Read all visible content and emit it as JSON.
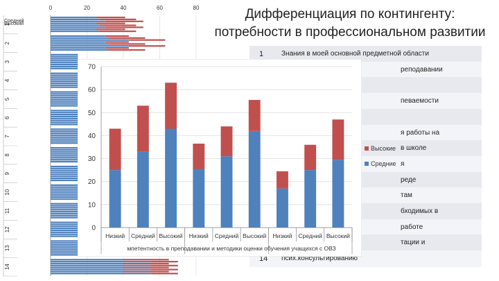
{
  "title_line1": "Дифференциация по контингенту:",
  "title_line2": "потребности в профессиональном развитии",
  "colors": {
    "Средние": "#4f81bd",
    "Высокие": "#c0504d"
  },
  "list": [
    {
      "num": "1",
      "text": "Знания в моей основной предметной области"
    },
    {
      "num": "",
      "text": "реподавании"
    },
    {
      "num": "",
      "text": ""
    },
    {
      "num": "",
      "text": "певаемости"
    },
    {
      "num": "",
      "text": ""
    },
    {
      "num": "",
      "text": "я работы на"
    },
    {
      "num": "",
      "text": "в школе"
    },
    {
      "num": "",
      "text": "я"
    },
    {
      "num": "",
      "text": "реде"
    },
    {
      "num": "",
      "text": "там"
    },
    {
      "num": "",
      "text": "бходимых в"
    },
    {
      "num": "",
      "text": "работе"
    },
    {
      "num": "",
      "text": "тации и"
    },
    {
      "num": "14",
      "text": "псих.консультированию"
    }
  ],
  "chart_data": [
    {
      "type": "bar",
      "stacked": true,
      "ylim": [
        0,
        70
      ],
      "yticks": [
        0,
        10,
        20,
        30,
        40,
        50,
        60,
        70
      ],
      "categories": [
        "Низкий",
        "Средний",
        "Высокий",
        "Низкий",
        "Средний",
        "Высокий",
        "Низкий",
        "Средний",
        "Высокий"
      ],
      "groups": [
        "Компетентность в преподавании",
        "Методики оценки обучения",
        "Обучение учащихся с ОВЗ"
      ],
      "group_labels_visible": "мпетентность в преподавании и методики оценки обучения учащихся с ОВЗ",
      "series": [
        {
          "name": "Средние",
          "values": [
            25,
            33,
            43,
            25.5,
            31,
            42,
            17,
            25,
            29.5
          ]
        },
        {
          "name": "Высокие",
          "values": [
            18,
            20,
            20,
            11,
            13,
            13.5,
            7.5,
            11,
            17.5
          ]
        }
      ],
      "legend": "right"
    },
    {
      "type": "bar",
      "orientation": "horizontal",
      "stacked": true,
      "xlim": [
        0,
        80
      ],
      "xticks": [
        0,
        20,
        40,
        60,
        80
      ],
      "row_labels": [
        "1",
        "2",
        "3",
        "4",
        "5",
        "6",
        "7",
        "8",
        "9",
        "10",
        "11",
        "12",
        "13",
        "14"
      ],
      "legend_items": [
        "Средний",
        "Высокий"
      ],
      "rows": [
        {
          "label": "1",
          "values": [
            {
              "s": 25,
              "h": 16
            },
            {
              "s": 27,
              "h": 20
            },
            {
              "s": 30,
              "h": 21
            }
          ]
        },
        {
          "label": "2",
          "values": [
            {
              "s": 30,
              "h": 13
            },
            {
              "s": 32,
              "h": 20
            },
            {
              "s": 43,
              "h": 20
            }
          ]
        },
        {
          "label": "14",
          "values": [
            {
              "s": 40,
              "h": 25
            },
            {
              "s": 55,
              "h": 15
            }
          ]
        }
      ]
    }
  ]
}
